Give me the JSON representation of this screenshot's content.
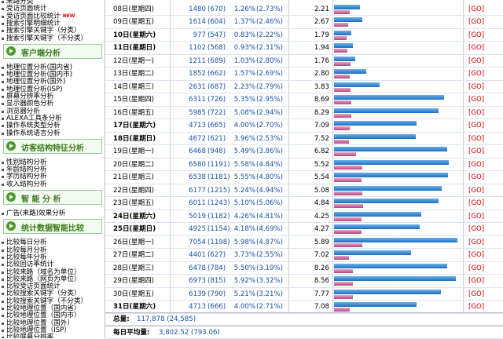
{
  "sidebar": {
    "items_top": [
      "来路分类",
      "受访页面统计",
      "受访页面比较统计",
      "搜索引擎明细统计",
      "搜索引擎关键字（分类）",
      "搜索引擎关键字（不分类）"
    ],
    "new_badge": "NEW",
    "sections": [
      {
        "title": "客户端分析",
        "items": [
          "地理位置分析(国内省)",
          "地理位置分析(国内市)",
          "地理位置分析(国外)",
          "地理位置分析(ISP)",
          "屏幕分辨率分析",
          "显示器颜色分析",
          "浏览器分析",
          "ALEXA工具条分析",
          "操作系统类型分析",
          "操作系统语言分析"
        ]
      },
      {
        "title": "访客结构特征分析",
        "items": [
          "性别结构分析",
          "年龄结构分析",
          "学历结构分析",
          "收入结构分析"
        ]
      },
      {
        "title": "智 能 分 析",
        "items": [
          "广告(来路)效果分析"
        ]
      },
      {
        "title": "统计数据智能比较",
        "items": [
          "比较每日分析",
          "比较每月分析",
          "比较每年分析",
          "比较回访率统计",
          "比较来路（域名为单位）",
          "比较来路（网页为单位）",
          "比较受访页面统计",
          "比较搜索关键字（分类）",
          "比较搜索关键字（不分类）",
          "比较地理位置（国内省）",
          "比较地理位置（国内市）",
          "比较地理位置（国外）",
          "比较地理位置（ISP）",
          "比较屏幕分辨率"
        ]
      }
    ]
  },
  "table": {
    "go": "[GO]",
    "rows": [
      {
        "date": "08日(星期四)",
        "pv": 1480,
        "ip": 670,
        "ip_label": "(670)",
        "pv_pct": "1.26%",
        "ip_pct": "(2.73%)",
        "ratio": "2.21",
        "bold": false
      },
      {
        "date": "09日(星期五)",
        "pv": 1614,
        "ip": 604,
        "ip_label": "(604)",
        "pv_pct": "1.37%",
        "ip_pct": "(2.46%)",
        "ratio": "2.67",
        "bold": false
      },
      {
        "date": "10日(星期六)",
        "pv": 977,
        "ip": 547,
        "ip_label": "(547)",
        "pv_pct": "0.83%",
        "ip_pct": "(2.22%)",
        "ratio": "1.79",
        "bold": true
      },
      {
        "date": "11日(星期日)",
        "pv": 1102,
        "ip": 568,
        "ip_label": "(568)",
        "pv_pct": "0.93%",
        "ip_pct": "(2.31%)",
        "ratio": "1.94",
        "bold": true
      },
      {
        "date": "12日(星期一)",
        "pv": 1211,
        "ip": 689,
        "ip_label": "(689)",
        "pv_pct": "1.03%",
        "ip_pct": "(2.80%)",
        "ratio": "1.76",
        "bold": false
      },
      {
        "date": "13日(星期二)",
        "pv": 1852,
        "ip": 662,
        "ip_label": "(662)",
        "pv_pct": "1.57%",
        "ip_pct": "(2.69%)",
        "ratio": "2.80",
        "bold": false
      },
      {
        "date": "14日(星期三)",
        "pv": 2631,
        "ip": 687,
        "ip_label": "(687)",
        "pv_pct": "2.23%",
        "ip_pct": "(2.79%)",
        "ratio": "3.83",
        "bold": false
      },
      {
        "date": "15日(星期四)",
        "pv": 6311,
        "ip": 726,
        "ip_label": "(726)",
        "pv_pct": "5.35%",
        "ip_pct": "(2.95%)",
        "ratio": "8.69",
        "bold": false
      },
      {
        "date": "16日(星期五)",
        "pv": 5985,
        "ip": 722,
        "ip_label": "(722)",
        "pv_pct": "5.08%",
        "ip_pct": "(2.94%)",
        "ratio": "8.29",
        "bold": false
      },
      {
        "date": "17日(星期六)",
        "pv": 4713,
        "ip": 665,
        "ip_label": "(665)",
        "pv_pct": "4.00%",
        "ip_pct": "(2.70%)",
        "ratio": "7.09",
        "bold": true
      },
      {
        "date": "18日(星期日)",
        "pv": 4672,
        "ip": 621,
        "ip_label": "(621)",
        "pv_pct": "3.96%",
        "ip_pct": "(2.53%)",
        "ratio": "7.52",
        "bold": true
      },
      {
        "date": "19日(星期一)",
        "pv": 6468,
        "ip": 948,
        "ip_label": "(948)",
        "pv_pct": "5.49%",
        "ip_pct": "(3.86%)",
        "ratio": "6.82",
        "bold": false
      },
      {
        "date": "20日(星期二)",
        "pv": 6580,
        "ip": 1191,
        "ip_label": "(1191)",
        "pv_pct": "5.58%",
        "ip_pct": "(4.84%)",
        "ratio": "5.52",
        "bold": false
      },
      {
        "date": "21日(星期三)",
        "pv": 6538,
        "ip": 1181,
        "ip_label": "(1181)",
        "pv_pct": "5.55%",
        "ip_pct": "(4.80%)",
        "ratio": "5.54",
        "bold": false
      },
      {
        "date": "22日(星期四)",
        "pv": 6177,
        "ip": 1215,
        "ip_label": "(1215)",
        "pv_pct": "5.24%",
        "ip_pct": "(4.94%)",
        "ratio": "5.08",
        "bold": false
      },
      {
        "date": "23日(星期五)",
        "pv": 6011,
        "ip": 1243,
        "ip_label": "(1243)",
        "pv_pct": "5.10%",
        "ip_pct": "(5.06%)",
        "ratio": "4.84",
        "bold": false
      },
      {
        "date": "24日(星期六)",
        "pv": 5019,
        "ip": 1182,
        "ip_label": "(1182)",
        "pv_pct": "4.26%",
        "ip_pct": "(4.81%)",
        "ratio": "4.25",
        "bold": true
      },
      {
        "date": "25日(星期日)",
        "pv": 4925,
        "ip": 1154,
        "ip_label": "(1154)",
        "pv_pct": "4.18%",
        "ip_pct": "(4.69%)",
        "ratio": "4.27",
        "bold": true
      },
      {
        "date": "26日(星期一)",
        "pv": 7054,
        "ip": 1198,
        "ip_label": "(1198)",
        "pv_pct": "5.98%",
        "ip_pct": "(4.87%)",
        "ratio": "5.89",
        "bold": false
      },
      {
        "date": "27日(星期二)",
        "pv": 4401,
        "ip": 627,
        "ip_label": "(627)",
        "pv_pct": "3.73%",
        "ip_pct": "(2.55%)",
        "ratio": "7.02",
        "bold": false
      },
      {
        "date": "28日(星期三)",
        "pv": 6478,
        "ip": 784,
        "ip_label": "(784)",
        "pv_pct": "5.50%",
        "ip_pct": "(3.19%)",
        "ratio": "8.26",
        "bold": false
      },
      {
        "date": "29日(星期四)",
        "pv": 6973,
        "ip": 815,
        "ip_label": "(815)",
        "pv_pct": "5.92%",
        "ip_pct": "(3.32%)",
        "ratio": "8.56",
        "bold": false
      },
      {
        "date": "30日(星期五)",
        "pv": 6139,
        "ip": 790,
        "ip_label": "(790)",
        "pv_pct": "5.21%",
        "ip_pct": "(3.21%)",
        "ratio": "7.77",
        "bold": false
      },
      {
        "date": "31日(星期六)",
        "pv": 4713,
        "ip": 666,
        "ip_label": "(666)",
        "pv_pct": "4.00%",
        "ip_pct": "(2.71%)",
        "ratio": "7.08",
        "bold": true
      }
    ],
    "total_label": "总量:",
    "total": "117,878 (24,585)",
    "avg_label": "每日平均量:",
    "avg": "3,802.52 (793.06)"
  }
}
